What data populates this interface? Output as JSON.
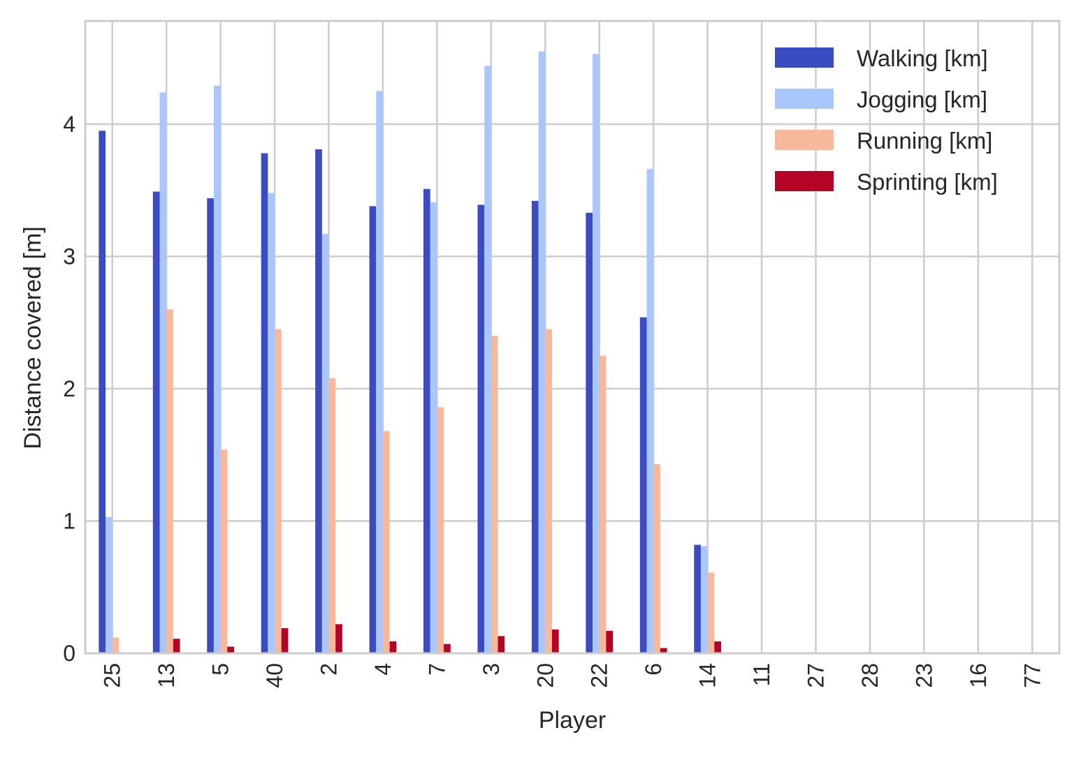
{
  "chart_data": {
    "type": "bar",
    "xlabel": "Player",
    "ylabel": "Distance covered [m]",
    "ylim": [
      0,
      4.78
    ],
    "yticks": [
      0,
      1,
      2,
      3,
      4
    ],
    "grid": true,
    "legend_position": "top-right",
    "categories": [
      "25",
      "13",
      "5",
      "40",
      "2",
      "4",
      "7",
      "3",
      "20",
      "22",
      "6",
      "14",
      "11",
      "27",
      "28",
      "23",
      "16",
      "77"
    ],
    "series": [
      {
        "name": "Walking [km]",
        "color": "#3b4cc0",
        "values": [
          3.95,
          3.49,
          3.44,
          3.78,
          3.81,
          3.38,
          3.51,
          3.39,
          3.42,
          3.33,
          2.54,
          0.82,
          0,
          0,
          0,
          0,
          0,
          0
        ]
      },
      {
        "name": "Jogging [km]",
        "color": "#aac7fd",
        "values": [
          1.03,
          4.24,
          4.29,
          3.48,
          3.17,
          4.25,
          3.41,
          4.44,
          4.55,
          4.53,
          3.66,
          0.81,
          0,
          0,
          0,
          0,
          0,
          0
        ]
      },
      {
        "name": "Running [km]",
        "color": "#f7b89c",
        "values": [
          0.12,
          2.6,
          1.54,
          2.45,
          2.08,
          1.68,
          1.86,
          2.4,
          2.45,
          2.25,
          1.43,
          0.61,
          0,
          0,
          0,
          0,
          0,
          0
        ]
      },
      {
        "name": "Sprinting [km]",
        "color": "#b40426",
        "values": [
          0,
          0.11,
          0.05,
          0.19,
          0.22,
          0.09,
          0.07,
          0.13,
          0.18,
          0.17,
          0.04,
          0.09,
          0,
          0,
          0,
          0,
          0,
          0
        ]
      }
    ]
  }
}
